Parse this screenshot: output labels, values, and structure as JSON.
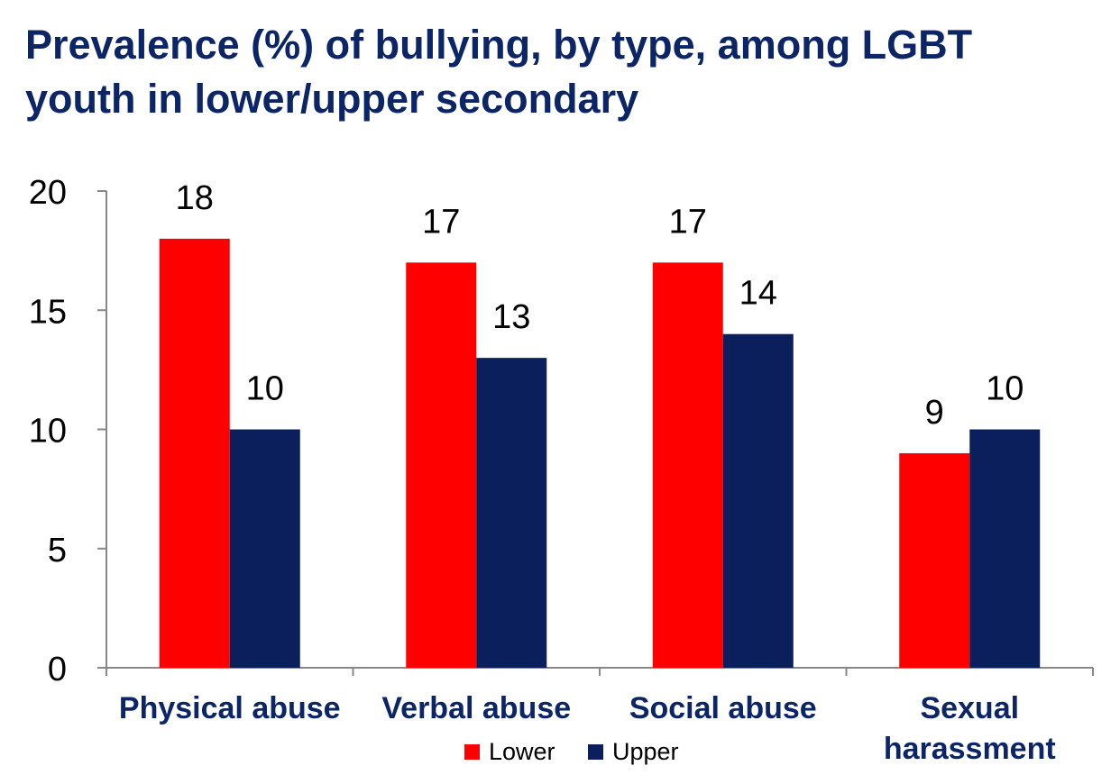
{
  "title_lines": [
    "Prevalence (%) of bullying, by type, among LGBT",
    "youth in lower/upper secondary"
  ],
  "chart_data": {
    "type": "bar",
    "title": "Prevalence (%) of bullying, by type, among LGBT youth in lower/upper secondary",
    "categories": [
      [
        "Physical abuse"
      ],
      [
        "Verbal abuse"
      ],
      [
        "Social abuse"
      ],
      [
        "Sexual",
        "harassment"
      ]
    ],
    "series": [
      {
        "name": "Lower",
        "values": [
          18,
          17,
          17,
          9
        ],
        "color": "#ff0000"
      },
      {
        "name": "Upper",
        "values": [
          10,
          13,
          14,
          10
        ],
        "color": "#0b1f5c"
      }
    ],
    "ylim": [
      0,
      20
    ],
    "yticks": [
      0,
      5,
      10,
      15,
      20
    ],
    "grid": false,
    "legend_position": "bottom",
    "data_labels": true,
    "colors": {
      "title": "#0b2566",
      "axis": "#888888",
      "category_label": "#0b2566",
      "text": "#000000"
    }
  }
}
